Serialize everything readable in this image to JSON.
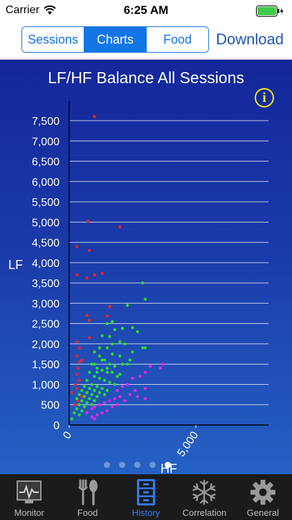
{
  "status_bar": {
    "carrier": "Carrier",
    "time": "6:25 AM"
  },
  "nav": {
    "segments": [
      {
        "label": "Sessions",
        "active": false
      },
      {
        "label": "Charts",
        "active": true
      },
      {
        "label": "Food",
        "active": false
      }
    ],
    "download_label": "Download"
  },
  "chart": {
    "info_label": "i",
    "page_count": 5,
    "active_page": 4
  },
  "chart_data": {
    "type": "scatter",
    "title": "LF/HF Balance All Sessions",
    "xlabel": "HF",
    "ylabel": "LF",
    "xlim": [
      0,
      7800
    ],
    "ylim": [
      0,
      7800
    ],
    "x_ticks": [
      "0",
      "5,000"
    ],
    "y_ticks": [
      "0",
      "500",
      "1,000",
      "1,500",
      "2,000",
      "2,500",
      "3,000",
      "3,500",
      "4,000",
      "4,500",
      "5,000",
      "5,500",
      "6,000",
      "6,500",
      "7,000",
      "7,500"
    ],
    "grid": true,
    "series": [
      {
        "color": "#ff2020",
        "points": [
          [
            1000,
            7600
          ],
          [
            750,
            5020
          ],
          [
            2000,
            4880
          ],
          [
            300,
            4400
          ],
          [
            800,
            4300
          ],
          [
            300,
            3700
          ],
          [
            700,
            3620
          ],
          [
            1000,
            3700
          ],
          [
            1300,
            3740
          ],
          [
            1600,
            2920
          ],
          [
            700,
            2700
          ],
          [
            800,
            2580
          ],
          [
            1500,
            2680
          ],
          [
            800,
            2150
          ],
          [
            300,
            2050
          ],
          [
            400,
            1900
          ],
          [
            300,
            1700
          ],
          [
            400,
            1550
          ],
          [
            500,
            1600
          ],
          [
            350,
            1400
          ],
          [
            300,
            1250
          ],
          [
            400,
            1100
          ],
          [
            250,
            1000
          ],
          [
            300,
            900
          ],
          [
            100,
            800
          ],
          [
            500,
            700
          ],
          [
            350,
            600
          ],
          [
            250,
            500
          ]
        ]
      },
      {
        "color": "#26e026",
        "points": [
          [
            2900,
            3500
          ],
          [
            3000,
            3100
          ],
          [
            2300,
            2950
          ],
          [
            1500,
            2500
          ],
          [
            1700,
            2550
          ],
          [
            1800,
            2350
          ],
          [
            2100,
            2380
          ],
          [
            2500,
            2400
          ],
          [
            2700,
            2300
          ],
          [
            1300,
            2200
          ],
          [
            1600,
            2180
          ],
          [
            2000,
            2050
          ],
          [
            2200,
            2000
          ],
          [
            2900,
            1900
          ],
          [
            3000,
            1900
          ],
          [
            1500,
            1900
          ],
          [
            1000,
            1800
          ],
          [
            1200,
            1700
          ],
          [
            1700,
            1750
          ],
          [
            2000,
            1700
          ],
          [
            2400,
            1600
          ],
          [
            1400,
            1600
          ],
          [
            1600,
            1500
          ],
          [
            1800,
            1450
          ],
          [
            2300,
            1500
          ],
          [
            900,
            1500
          ],
          [
            1100,
            1400
          ],
          [
            1300,
            1350
          ],
          [
            1500,
            1300
          ],
          [
            1700,
            1300
          ],
          [
            2000,
            1250
          ],
          [
            800,
            1300
          ],
          [
            1000,
            1200
          ],
          [
            1200,
            1150
          ],
          [
            1400,
            1100
          ],
          [
            1600,
            1050
          ],
          [
            1800,
            1000
          ],
          [
            700,
            1100
          ],
          [
            900,
            1000
          ],
          [
            1100,
            950
          ],
          [
            1300,
            900
          ],
          [
            1500,
            850
          ],
          [
            600,
            950
          ],
          [
            800,
            900
          ],
          [
            1000,
            850
          ],
          [
            1200,
            800
          ],
          [
            1400,
            750
          ],
          [
            500,
            850
          ],
          [
            700,
            800
          ],
          [
            900,
            750
          ],
          [
            1100,
            700
          ],
          [
            400,
            750
          ],
          [
            600,
            700
          ],
          [
            800,
            650
          ],
          [
            1000,
            600
          ],
          [
            300,
            650
          ],
          [
            500,
            600
          ],
          [
            700,
            550
          ],
          [
            900,
            500
          ],
          [
            400,
            500
          ],
          [
            600,
            450
          ],
          [
            300,
            400
          ],
          [
            500,
            350
          ],
          [
            200,
            300
          ],
          [
            400,
            250
          ],
          [
            100,
            150
          ],
          [
            1100,
            1300
          ],
          [
            1500,
            1400
          ],
          [
            1900,
            1200
          ],
          [
            2100,
            1500
          ],
          [
            1000,
            1500
          ],
          [
            1300,
            1600
          ],
          [
            2500,
            1800
          ],
          [
            1200,
            1900
          ],
          [
            1700,
            2000
          ]
        ]
      },
      {
        "color": "#ee22ee",
        "points": [
          [
            3700,
            1500
          ],
          [
            3600,
            1400
          ],
          [
            3200,
            1450
          ],
          [
            3000,
            1300
          ],
          [
            2800,
            1200
          ],
          [
            2500,
            1150
          ],
          [
            2300,
            1000
          ],
          [
            2100,
            950
          ],
          [
            1900,
            850
          ],
          [
            2600,
            850
          ],
          [
            3000,
            900
          ],
          [
            2400,
            750
          ],
          [
            2000,
            700
          ],
          [
            1800,
            650
          ],
          [
            1600,
            600
          ],
          [
            1400,
            550
          ],
          [
            1200,
            500
          ],
          [
            1000,
            450
          ],
          [
            900,
            400
          ],
          [
            1300,
            300
          ],
          [
            1100,
            250
          ],
          [
            900,
            200
          ],
          [
            700,
            300
          ],
          [
            1500,
            350
          ],
          [
            1700,
            450
          ],
          [
            2200,
            600
          ],
          [
            1900,
            500
          ],
          [
            3000,
            650
          ],
          [
            2700,
            700
          ],
          [
            1000,
            150
          ]
        ]
      }
    ]
  },
  "tab_bar": {
    "tabs": [
      {
        "label": "Monitor",
        "icon": "monitor-icon",
        "active": false
      },
      {
        "label": "Food",
        "icon": "fork-spoon-icon",
        "active": false
      },
      {
        "label": "History",
        "icon": "cabinet-icon",
        "active": true
      },
      {
        "label": "Correlation",
        "icon": "snowflake-icon",
        "active": false
      },
      {
        "label": "General",
        "icon": "gear-icon",
        "active": false
      }
    ]
  },
  "colors": {
    "accent": "#1475e4",
    "tab_active": "#2f7cf6",
    "info": "#f3e81a"
  }
}
